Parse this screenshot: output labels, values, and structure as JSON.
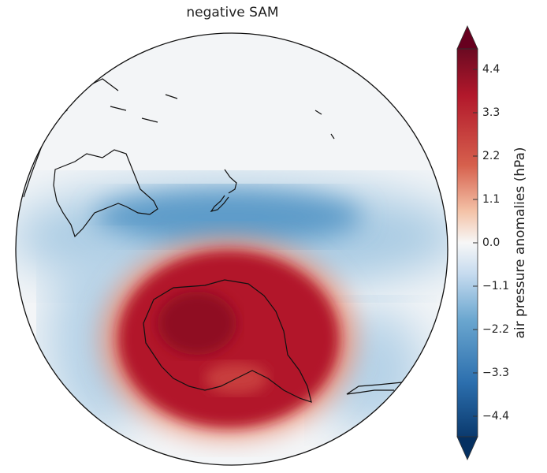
{
  "title": "negative SAM",
  "colorbar": {
    "label": "air pressure anomalies (hPa)",
    "ticks": [
      "4.4",
      "3.3",
      "2.2",
      "1.1",
      "0.0",
      "−1.1",
      "−2.2",
      "−3.3",
      "−4.4"
    ],
    "tick_values": [
      4.4,
      3.3,
      2.2,
      1.1,
      0.0,
      -1.1,
      -2.2,
      -3.3,
      -4.4
    ],
    "colormap": "RdBu_r",
    "extend": "both",
    "colors": {
      "max": "#67001f",
      "high": "#b2182b",
      "mid": "#f7f7f7",
      "low": "#2166ac",
      "min": "#053061"
    }
  },
  "map": {
    "projection": "orthographic",
    "features": [
      "Australia",
      "New Zealand",
      "Antarctica",
      "South America tip"
    ],
    "anomalies": [
      {
        "region": "Antarctica",
        "sign": "positive"
      },
      {
        "region": "mid-latitude band near New Zealand",
        "sign": "negative"
      }
    ]
  }
}
